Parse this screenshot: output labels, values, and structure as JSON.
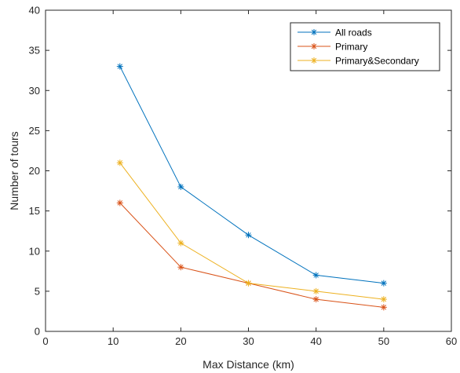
{
  "chart_data": {
    "type": "line",
    "xlabel": "Max Distance (km)",
    "ylabel": "Number of tours",
    "xlim": [
      0,
      60
    ],
    "ylim": [
      0,
      40
    ],
    "xticks": [
      0,
      10,
      20,
      30,
      40,
      50,
      60
    ],
    "yticks": [
      0,
      5,
      10,
      15,
      20,
      25,
      30,
      35,
      40
    ],
    "grid": false,
    "legend_position": "top-right",
    "x": [
      11,
      20,
      30,
      40,
      50
    ],
    "marker": "asterisk",
    "series": [
      {
        "name": "All roads",
        "color": "#0072BD",
        "values": [
          33,
          18,
          12,
          7,
          6
        ]
      },
      {
        "name": "Primary",
        "color": "#D95319",
        "values": [
          16,
          8,
          6,
          4,
          3
        ]
      },
      {
        "name": "Primary&Secondary",
        "color": "#EDB120",
        "values": [
          21,
          11,
          6,
          5,
          4
        ]
      }
    ]
  }
}
